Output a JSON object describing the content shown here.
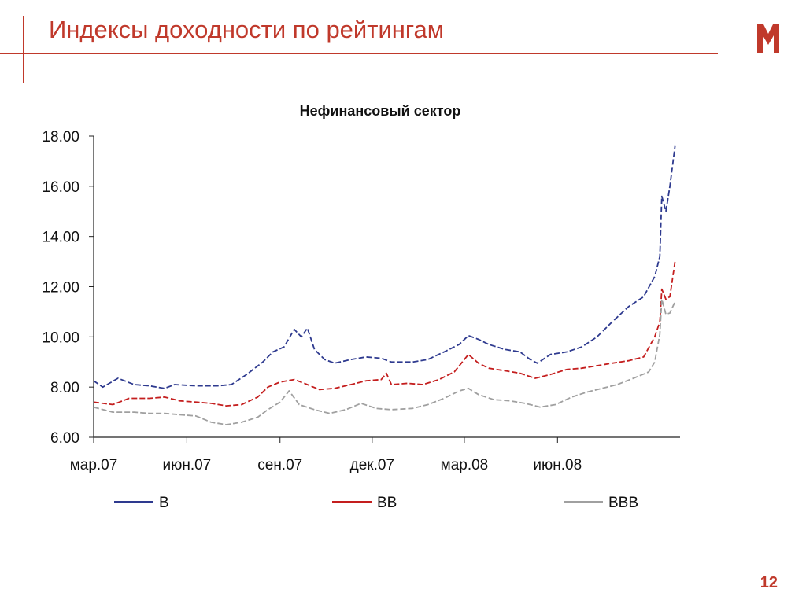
{
  "header": {
    "title": "Индексы доходности по рейтингам",
    "page_number": "12"
  },
  "colors": {
    "accent": "#c0392b",
    "series_B": "#2e3a8f",
    "series_BB": "#c41e1e",
    "series_BBB": "#a0a0a0"
  },
  "icons": {
    "logo": "m-logo-icon"
  },
  "chart_data": {
    "type": "line",
    "title": "Нефинансовый сектор",
    "xlabel": "",
    "ylabel": "",
    "ylim": [
      6,
      18
    ],
    "yticks": [
      "6.00",
      "8.00",
      "10.00",
      "12.00",
      "14.00",
      "16.00",
      "18.00"
    ],
    "xticks": [
      "мар.07",
      "июн.07",
      "сен.07",
      "дек.07",
      "мар.08",
      "июн.08"
    ],
    "xlim": [
      "2007-03-01",
      "2008-09-30"
    ],
    "grid": false,
    "legend_position": "bottom",
    "series": [
      {
        "name": "B",
        "color": "#2e3a8f",
        "points": [
          [
            "2007-03-01",
            8.25
          ],
          [
            "2007-03-10",
            8.0
          ],
          [
            "2007-03-25",
            8.35
          ],
          [
            "2007-04-10",
            8.1
          ],
          [
            "2007-04-25",
            8.05
          ],
          [
            "2007-05-10",
            7.95
          ],
          [
            "2007-05-20",
            8.1
          ],
          [
            "2007-06-10",
            8.05
          ],
          [
            "2007-07-01",
            8.05
          ],
          [
            "2007-07-15",
            8.1
          ],
          [
            "2007-07-30",
            8.5
          ],
          [
            "2007-08-15",
            9.0
          ],
          [
            "2007-08-25",
            9.4
          ],
          [
            "2007-09-05",
            9.6
          ],
          [
            "2007-09-15",
            10.3
          ],
          [
            "2007-09-22",
            10.0
          ],
          [
            "2007-09-28",
            10.35
          ],
          [
            "2007-10-05",
            9.5
          ],
          [
            "2007-10-15",
            9.1
          ],
          [
            "2007-10-25",
            8.95
          ],
          [
            "2007-11-10",
            9.1
          ],
          [
            "2007-11-25",
            9.2
          ],
          [
            "2007-12-10",
            9.15
          ],
          [
            "2007-12-20",
            9.0
          ],
          [
            "2008-01-10",
            9.0
          ],
          [
            "2008-01-25",
            9.1
          ],
          [
            "2008-02-10",
            9.4
          ],
          [
            "2008-02-25",
            9.7
          ],
          [
            "2008-03-05",
            10.05
          ],
          [
            "2008-03-15",
            9.9
          ],
          [
            "2008-03-25",
            9.7
          ],
          [
            "2008-04-10",
            9.5
          ],
          [
            "2008-04-25",
            9.4
          ],
          [
            "2008-05-05",
            9.1
          ],
          [
            "2008-05-12",
            8.95
          ],
          [
            "2008-05-25",
            9.3
          ],
          [
            "2008-06-10",
            9.4
          ],
          [
            "2008-06-25",
            9.6
          ],
          [
            "2008-07-10",
            10.0
          ],
          [
            "2008-07-25",
            10.6
          ],
          [
            "2008-08-10",
            11.2
          ],
          [
            "2008-08-25",
            11.6
          ],
          [
            "2008-09-05",
            12.4
          ],
          [
            "2008-09-10",
            13.2
          ],
          [
            "2008-09-12",
            15.6
          ],
          [
            "2008-09-16",
            15.0
          ],
          [
            "2008-09-20",
            16.0
          ],
          [
            "2008-09-25",
            17.6
          ]
        ]
      },
      {
        "name": "BB",
        "color": "#c41e1e",
        "points": [
          [
            "2007-03-01",
            7.4
          ],
          [
            "2007-03-20",
            7.3
          ],
          [
            "2007-04-05",
            7.55
          ],
          [
            "2007-04-25",
            7.55
          ],
          [
            "2007-05-10",
            7.6
          ],
          [
            "2007-05-25",
            7.45
          ],
          [
            "2007-06-10",
            7.4
          ],
          [
            "2007-06-25",
            7.35
          ],
          [
            "2007-07-10",
            7.25
          ],
          [
            "2007-07-25",
            7.3
          ],
          [
            "2007-08-10",
            7.6
          ],
          [
            "2007-08-20",
            8.0
          ],
          [
            "2007-09-01",
            8.2
          ],
          [
            "2007-09-15",
            8.3
          ],
          [
            "2007-09-25",
            8.15
          ],
          [
            "2007-10-10",
            7.9
          ],
          [
            "2007-10-25",
            7.95
          ],
          [
            "2007-11-10",
            8.1
          ],
          [
            "2007-11-25",
            8.25
          ],
          [
            "2007-12-10",
            8.3
          ],
          [
            "2007-12-15",
            8.55
          ],
          [
            "2007-12-20",
            8.1
          ],
          [
            "2008-01-05",
            8.15
          ],
          [
            "2008-01-20",
            8.1
          ],
          [
            "2008-02-05",
            8.3
          ],
          [
            "2008-02-20",
            8.6
          ],
          [
            "2008-03-05",
            9.3
          ],
          [
            "2008-03-15",
            8.95
          ],
          [
            "2008-03-25",
            8.75
          ],
          [
            "2008-04-10",
            8.65
          ],
          [
            "2008-04-25",
            8.55
          ],
          [
            "2008-05-10",
            8.35
          ],
          [
            "2008-05-25",
            8.5
          ],
          [
            "2008-06-10",
            8.7
          ],
          [
            "2008-06-25",
            8.75
          ],
          [
            "2008-07-10",
            8.85
          ],
          [
            "2008-07-25",
            8.95
          ],
          [
            "2008-08-10",
            9.05
          ],
          [
            "2008-08-25",
            9.2
          ],
          [
            "2008-09-05",
            10.0
          ],
          [
            "2008-09-10",
            10.6
          ],
          [
            "2008-09-12",
            11.9
          ],
          [
            "2008-09-16",
            11.5
          ],
          [
            "2008-09-20",
            11.6
          ],
          [
            "2008-09-25",
            13.0
          ]
        ]
      },
      {
        "name": "BBB",
        "color": "#a0a0a0",
        "points": [
          [
            "2007-03-01",
            7.2
          ],
          [
            "2007-03-20",
            7.0
          ],
          [
            "2007-04-10",
            7.0
          ],
          [
            "2007-04-25",
            6.95
          ],
          [
            "2007-05-10",
            6.95
          ],
          [
            "2007-05-25",
            6.9
          ],
          [
            "2007-06-10",
            6.85
          ],
          [
            "2007-06-25",
            6.6
          ],
          [
            "2007-07-10",
            6.5
          ],
          [
            "2007-07-25",
            6.6
          ],
          [
            "2007-08-10",
            6.8
          ],
          [
            "2007-08-20",
            7.1
          ],
          [
            "2007-09-01",
            7.4
          ],
          [
            "2007-09-10",
            7.85
          ],
          [
            "2007-09-20",
            7.3
          ],
          [
            "2007-10-05",
            7.1
          ],
          [
            "2007-10-20",
            6.95
          ],
          [
            "2007-11-05",
            7.1
          ],
          [
            "2007-11-20",
            7.35
          ],
          [
            "2007-12-05",
            7.15
          ],
          [
            "2007-12-20",
            7.1
          ],
          [
            "2008-01-10",
            7.15
          ],
          [
            "2008-01-25",
            7.3
          ],
          [
            "2008-02-10",
            7.55
          ],
          [
            "2008-02-25",
            7.85
          ],
          [
            "2008-03-05",
            7.95
          ],
          [
            "2008-03-15",
            7.7
          ],
          [
            "2008-03-30",
            7.5
          ],
          [
            "2008-04-15",
            7.45
          ],
          [
            "2008-04-30",
            7.35
          ],
          [
            "2008-05-15",
            7.2
          ],
          [
            "2008-05-30",
            7.3
          ],
          [
            "2008-06-15",
            7.6
          ],
          [
            "2008-06-30",
            7.8
          ],
          [
            "2008-07-15",
            7.95
          ],
          [
            "2008-07-30",
            8.1
          ],
          [
            "2008-08-15",
            8.35
          ],
          [
            "2008-08-30",
            8.6
          ],
          [
            "2008-09-05",
            9.0
          ],
          [
            "2008-09-10",
            10.1
          ],
          [
            "2008-09-12",
            11.5
          ],
          [
            "2008-09-16",
            10.9
          ],
          [
            "2008-09-20",
            10.95
          ],
          [
            "2008-09-25",
            11.4
          ]
        ]
      }
    ]
  }
}
